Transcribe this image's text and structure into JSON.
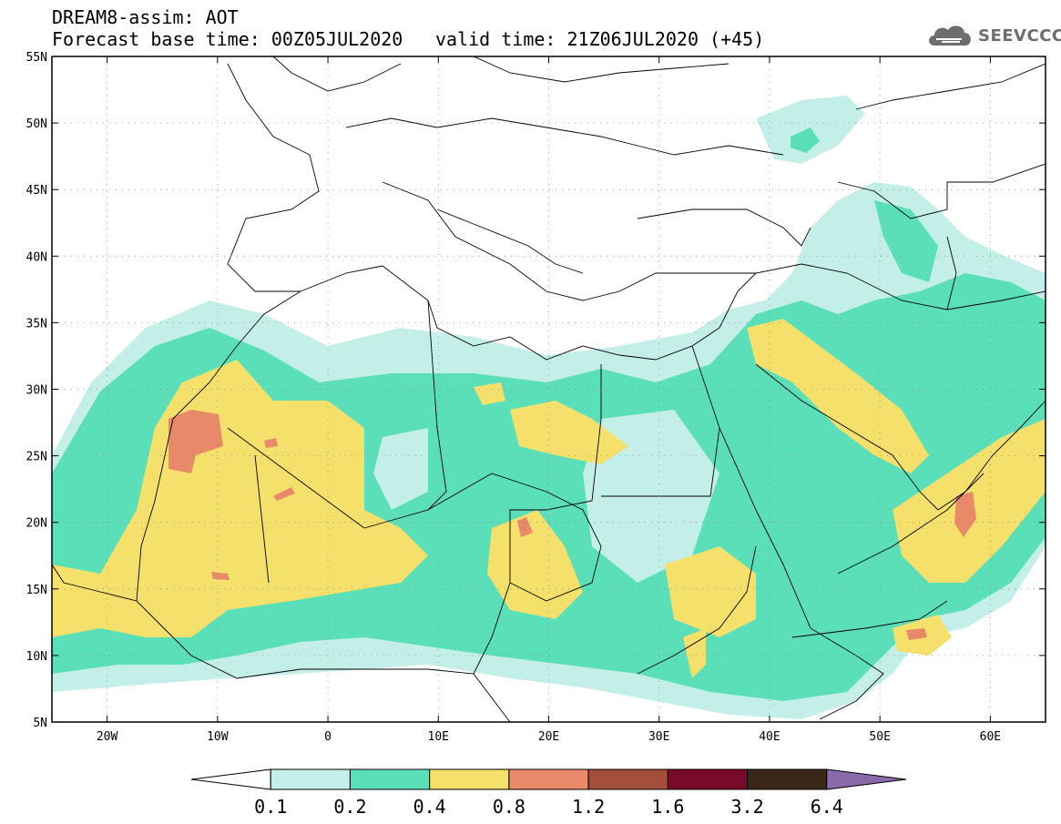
{
  "header": {
    "title": "DREAM8-assim: AOT",
    "base_time": "Forecast base time: 00Z05JUL2020",
    "valid_time": "valid time: 21Z06JUL2020 (+45)"
  },
  "logo": {
    "text": "SEEVCCC",
    "icon": "cloud-icon"
  },
  "map": {
    "lon_range": [
      -25,
      65
    ],
    "lat_range": [
      5,
      55
    ],
    "lat_ticks": [
      "55N",
      "50N",
      "45N",
      "40N",
      "35N",
      "30N",
      "25N",
      "20N",
      "15N",
      "10N",
      "5N"
    ],
    "lon_ticks": [
      "20W",
      "10W",
      "0",
      "10E",
      "20E",
      "30E",
      "40E",
      "50E",
      "60E"
    ]
  },
  "colorbar": {
    "labels": [
      "0.1",
      "0.2",
      "0.4",
      "0.8",
      "1.2",
      "1.6",
      "3.2",
      "6.4"
    ],
    "colors": [
      "#c4efe9",
      "#5bdfb9",
      "#f4e06a",
      "#e8896a",
      "#a34f3c",
      "#7a0a2c",
      "#3b2717",
      "#8b6aab"
    ],
    "under_color": "#ffffff"
  }
}
